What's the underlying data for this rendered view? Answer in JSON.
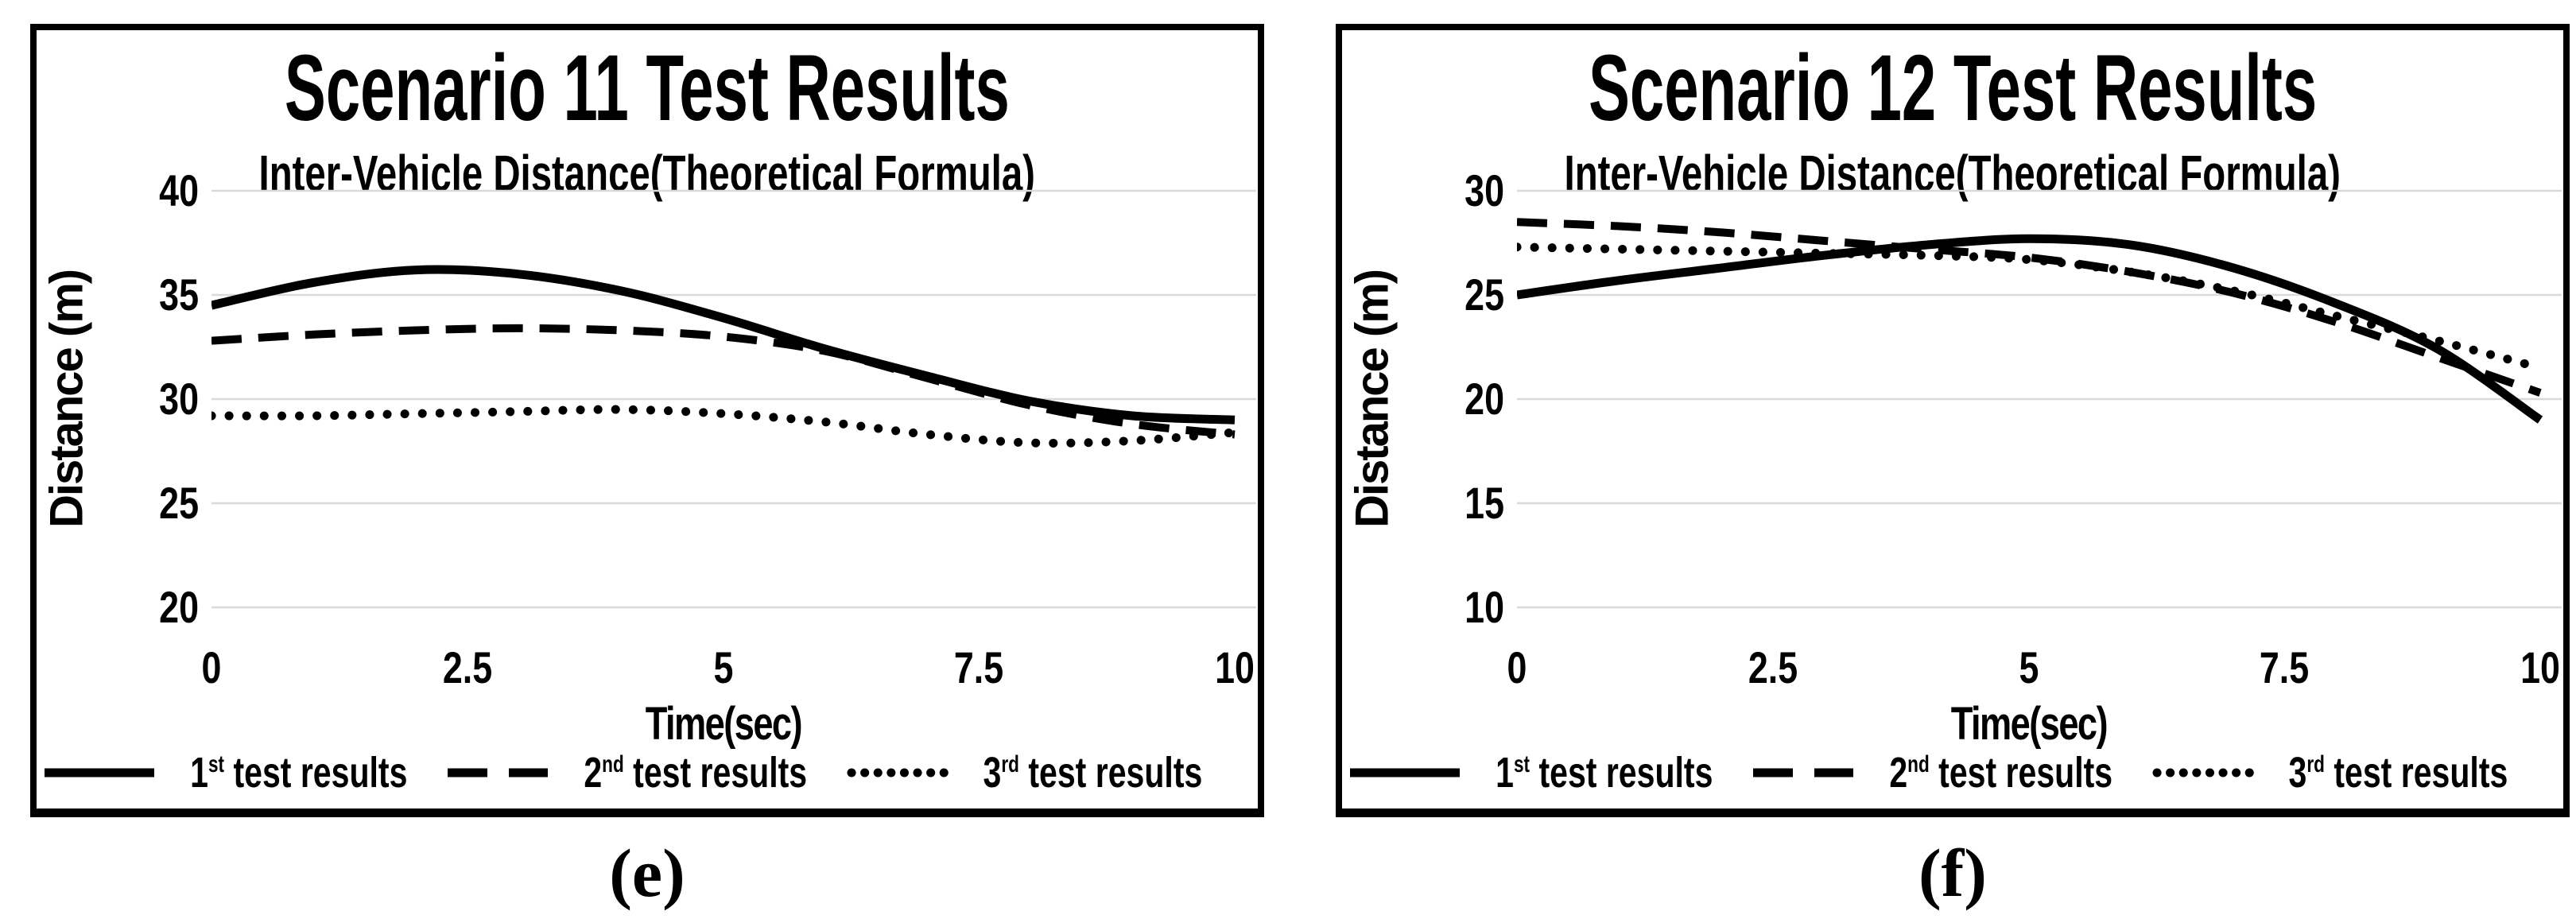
{
  "page": {
    "background": "#ffffff",
    "description": "Two side-by-side line charts of inter-vehicle distance test results"
  },
  "colors": {
    "line": "#000000",
    "grid": "#d9d9d9",
    "text": "#000000",
    "panel_border": "#000000"
  },
  "chart_data": [
    {
      "type": "line",
      "title": "Scenario 11 Test Results",
      "subtitle": "Inter-Vehicle Distance(Theoretical Formula)",
      "xlabel": "Time(sec)",
      "ylabel": "Distance (m)",
      "caption": "(e)",
      "x": [
        0,
        1,
        2,
        3,
        4,
        5,
        6,
        7,
        8,
        9,
        10
      ],
      "xticks": [
        0,
        2.5,
        5,
        7.5,
        10
      ],
      "yticks": [
        40,
        35,
        30,
        25,
        20
      ],
      "xlim": [
        0,
        10
      ],
      "ylim": [
        20,
        40
      ],
      "grid": "horizontal",
      "legend_position": "bottom",
      "series": [
        {
          "name": "1st test results",
          "style": "solid",
          "values": [
            34.5,
            35.6,
            36.2,
            36.0,
            35.2,
            33.9,
            32.4,
            31.1,
            29.9,
            29.2,
            29.0
          ]
        },
        {
          "name": "2nd test results",
          "style": "dashed",
          "values": [
            32.8,
            33.1,
            33.3,
            33.4,
            33.3,
            33.0,
            32.3,
            31.0,
            29.7,
            28.8,
            28.3
          ]
        },
        {
          "name": "3rd test results",
          "style": "dotted",
          "values": [
            29.2,
            29.2,
            29.3,
            29.4,
            29.5,
            29.3,
            28.9,
            28.3,
            27.9,
            28.0,
            28.4
          ]
        }
      ],
      "legend": [
        {
          "num": "1",
          "sup": "st",
          "rest": " test results"
        },
        {
          "num": "2",
          "sup": "nd",
          "rest": " test results"
        },
        {
          "num": "3",
          "sup": "rd",
          "rest": " test results"
        }
      ]
    },
    {
      "type": "line",
      "title": "Scenario 12 Test Results",
      "subtitle": "Inter-Vehicle Distance(Theoretical Formula)",
      "xlabel": "Time(sec)",
      "ylabel": "Distance (m)",
      "caption": "(f)",
      "x": [
        0,
        1,
        2,
        3,
        4,
        5,
        6,
        7,
        8,
        9,
        10
      ],
      "xticks": [
        0,
        2.5,
        5,
        7.5,
        10
      ],
      "yticks": [
        30,
        25,
        20,
        15,
        10
      ],
      "xlim": [
        0,
        10
      ],
      "ylim": [
        10,
        30
      ],
      "grid": "horizontal",
      "legend_position": "bottom",
      "series": [
        {
          "name": "1st test results",
          "style": "solid",
          "values": [
            25.0,
            25.7,
            26.3,
            26.9,
            27.4,
            27.7,
            27.4,
            26.3,
            24.6,
            22.4,
            19.0
          ]
        },
        {
          "name": "2nd test results",
          "style": "dashed",
          "values": [
            28.5,
            28.3,
            28.0,
            27.6,
            27.2,
            26.8,
            26.1,
            25.1,
            23.7,
            22.0,
            20.3
          ]
        },
        {
          "name": "3rd test results",
          "style": "dotted",
          "values": [
            27.3,
            27.2,
            27.1,
            27.0,
            26.9,
            26.7,
            26.1,
            25.2,
            24.0,
            22.8,
            21.5
          ]
        }
      ],
      "legend": [
        {
          "num": "1",
          "sup": "st",
          "rest": " test results"
        },
        {
          "num": "2",
          "sup": "nd",
          "rest": " test results"
        },
        {
          "num": "3",
          "sup": "rd",
          "rest": " test results"
        }
      ]
    }
  ]
}
